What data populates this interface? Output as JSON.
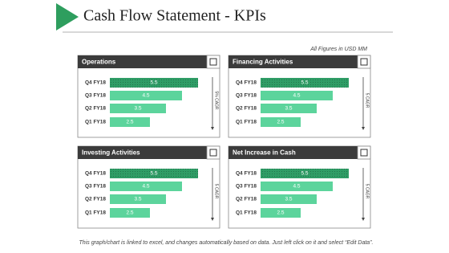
{
  "header": {
    "title": "Cash Flow Statement - KPIs",
    "note": "All Figures in USD MM"
  },
  "footer": "This graph/chart is linked to excel, and changes automatically based on data. Just left click on it and select “Edit Data”.",
  "chart_data": [
    {
      "type": "bar",
      "orientation": "horizontal",
      "title": "Operations",
      "axis_label": "5% CAGR",
      "categories": [
        "Q4 FY18",
        "Q3 FY18",
        "Q2 FY18",
        "Q1 FY18"
      ],
      "values": [
        5.5,
        4.5,
        3.5,
        2.5
      ],
      "colors": [
        "#2f9d66",
        "#5cd49c",
        "#5cd49c",
        "#5cd49c"
      ],
      "xlim": [
        0,
        6
      ]
    },
    {
      "type": "bar",
      "orientation": "horizontal",
      "title": "Financing Activities",
      "axis_label": "5 CAGR",
      "categories": [
        "Q4 FY18",
        "Q3 FY18",
        "Q2 FY18",
        "Q1 FY18"
      ],
      "values": [
        5.5,
        4.5,
        3.5,
        2.5
      ],
      "colors": [
        "#2f9d66",
        "#5cd49c",
        "#5cd49c",
        "#5cd49c"
      ],
      "xlim": [
        0,
        6
      ]
    },
    {
      "type": "bar",
      "orientation": "horizontal",
      "title": "Investing Activities",
      "axis_label": "5 CAGR",
      "categories": [
        "Q4 FY18",
        "Q3 FY18",
        "Q2 FY18",
        "Q1 FY18"
      ],
      "values": [
        5.5,
        4.5,
        3.5,
        2.5
      ],
      "colors": [
        "#2f9d66",
        "#5cd49c",
        "#5cd49c",
        "#5cd49c"
      ],
      "xlim": [
        0,
        6
      ]
    },
    {
      "type": "bar",
      "orientation": "horizontal",
      "title": "Net Increase in Cash",
      "axis_label": "5 CAGR",
      "categories": [
        "Q4 FY18",
        "Q3 FY18",
        "Q2 FY18",
        "Q1 FY18"
      ],
      "values": [
        5.5,
        4.5,
        3.5,
        2.5
      ],
      "colors": [
        "#2f9d66",
        "#5cd49c",
        "#5cd49c",
        "#5cd49c"
      ],
      "xlim": [
        0,
        6
      ]
    }
  ]
}
